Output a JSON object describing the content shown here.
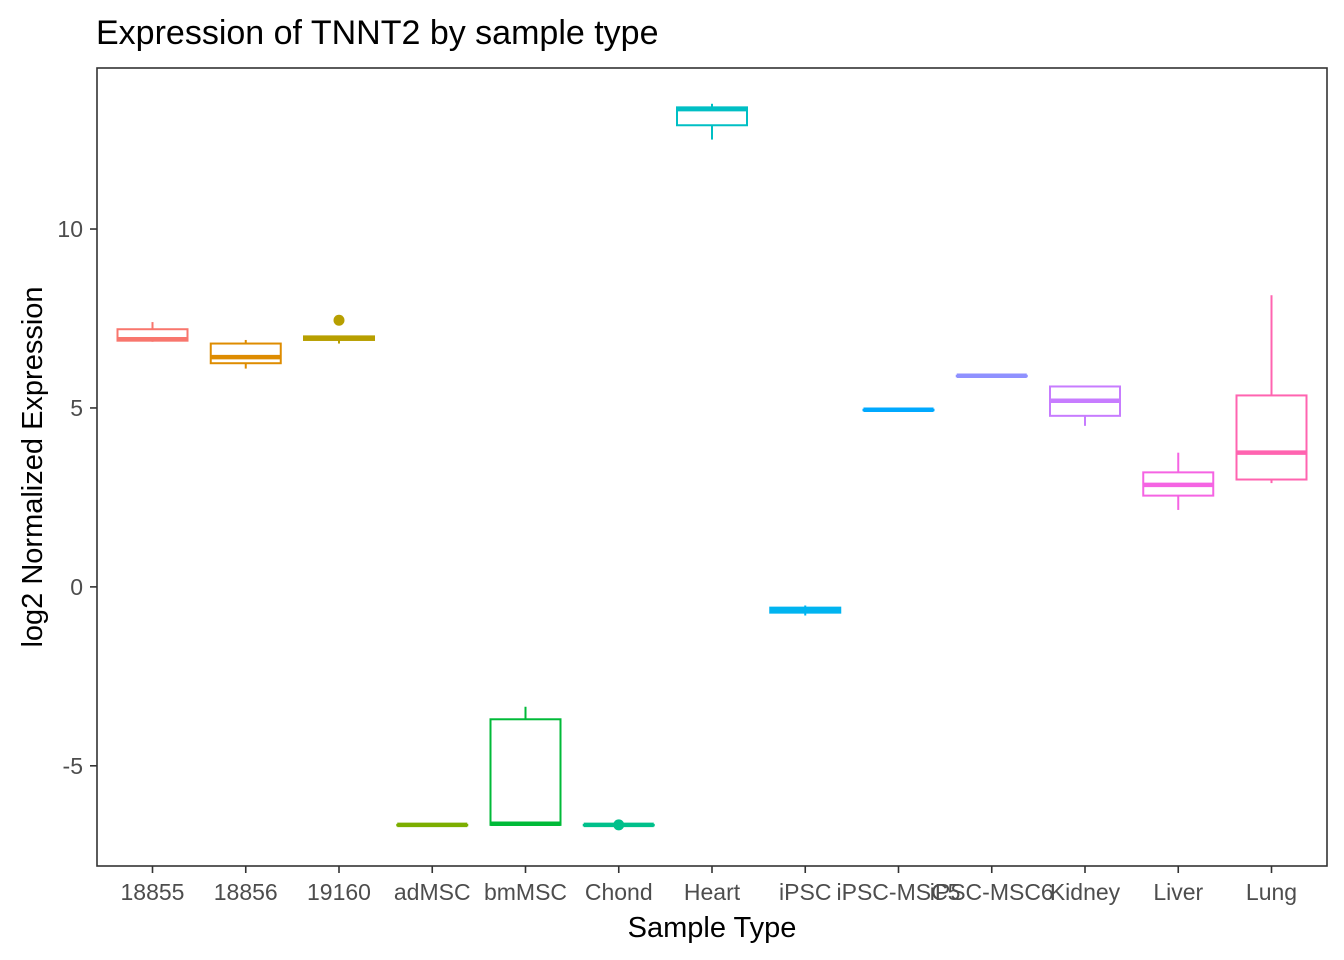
{
  "chart_data": {
    "type": "boxplot",
    "title": "Expression of TNNT2 by sample type",
    "xlabel": "Sample Type",
    "ylabel": "log2 Normalized Expression",
    "ylim": [
      -7.8,
      14.5
    ],
    "yticks": [
      -5,
      0,
      5,
      10
    ],
    "grid": false,
    "legend": "none",
    "categories": [
      "18855",
      "18856",
      "19160",
      "adMSC",
      "bmMSC",
      "Chond",
      "Heart",
      "iPSC",
      "iPSC-MSC5",
      "iPSC-MSC6",
      "Kidney",
      "Liver",
      "Lung"
    ],
    "colors": [
      "#F8766D",
      "#DE8C00",
      "#B79F00",
      "#7CAE00",
      "#00BA38",
      "#00C08B",
      "#00BFC4",
      "#00B4F0",
      "#00A9FF",
      "#8F91FF",
      "#C77CFF",
      "#F564E3",
      "#FF64B0"
    ],
    "boxes": [
      {
        "min": 6.85,
        "q1": 6.88,
        "median": 6.92,
        "q3": 7.2,
        "max": 7.4,
        "outliers": []
      },
      {
        "min": 6.1,
        "q1": 6.25,
        "median": 6.42,
        "q3": 6.8,
        "max": 6.9,
        "outliers": []
      },
      {
        "min": 6.8,
        "q1": 6.9,
        "median": 6.95,
        "q3": 7.0,
        "max": 7.0,
        "outliers": [
          7.45
        ]
      },
      {
        "min": -6.65,
        "q1": -6.65,
        "median": -6.65,
        "q3": -6.65,
        "max": -6.65,
        "outliers": []
      },
      {
        "min": -6.65,
        "q1": -6.65,
        "median": -6.62,
        "q3": -3.7,
        "max": -3.35,
        "outliers": []
      },
      {
        "min": -6.65,
        "q1": -6.65,
        "median": -6.65,
        "q3": -6.65,
        "max": -6.65,
        "outliers": [
          -6.65
        ]
      },
      {
        "min": 12.5,
        "q1": 12.9,
        "median": 13.35,
        "q3": 13.4,
        "max": 13.5,
        "outliers": []
      },
      {
        "min": -0.8,
        "q1": -0.72,
        "median": -0.65,
        "q3": -0.58,
        "max": -0.52,
        "outliers": []
      },
      {
        "min": 4.95,
        "q1": 4.95,
        "median": 4.95,
        "q3": 4.95,
        "max": 4.95,
        "outliers": []
      },
      {
        "min": 5.9,
        "q1": 5.9,
        "median": 5.9,
        "q3": 5.9,
        "max": 5.9,
        "outliers": []
      },
      {
        "min": 4.5,
        "q1": 4.78,
        "median": 5.2,
        "q3": 5.6,
        "max": 5.6,
        "outliers": []
      },
      {
        "min": 2.15,
        "q1": 2.55,
        "median": 2.85,
        "q3": 3.2,
        "max": 3.75,
        "outliers": []
      },
      {
        "min": 2.9,
        "q1": 3.0,
        "median": 3.75,
        "q3": 5.35,
        "max": 8.15,
        "outliers": []
      }
    ]
  }
}
